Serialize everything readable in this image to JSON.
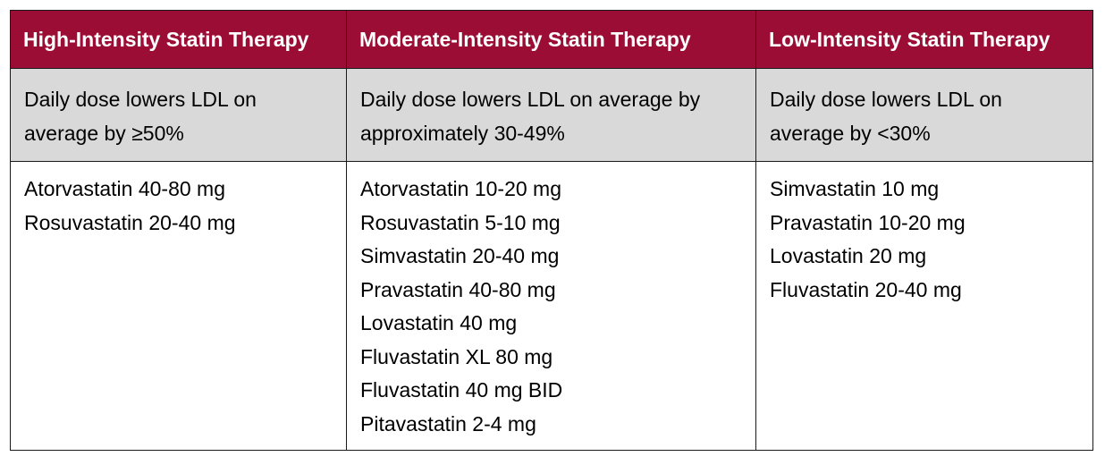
{
  "table": {
    "columns": [
      {
        "header": "High-Intensity Statin Therapy",
        "description": "Daily dose lowers LDL on average by ≥50%",
        "drugs": [
          "Atorvastatin 40-80 mg",
          "Rosuvastatin 20-40 mg"
        ]
      },
      {
        "header": "Moderate-Intensity Statin Therapy",
        "description": "Daily dose lowers LDL on average by approximately 30-49%",
        "drugs": [
          "Atorvastatin 10-20 mg",
          "Rosuvastatin 5-10 mg",
          "Simvastatin 20-40 mg",
          "Pravastatin 40-80 mg",
          "Lovastatin 40 mg",
          "Fluvastatin XL 80 mg",
          "Fluvastatin 40 mg BID",
          "Pitavastatin 2-4 mg"
        ]
      },
      {
        "header": "Low-Intensity Statin Therapy",
        "description": "Daily dose lowers LDL on average by <30%",
        "drugs": [
          "Simvastatin 10 mg",
          "Pravastatin 10-20 mg",
          "Lovastatin 20 mg",
          "Fluvastatin 20-40 mg"
        ]
      }
    ],
    "colors": {
      "header_bg": "#9b0d35",
      "header_text": "#ffffff",
      "description_bg": "#d9d9d9",
      "border": "#1a1a1a"
    }
  }
}
